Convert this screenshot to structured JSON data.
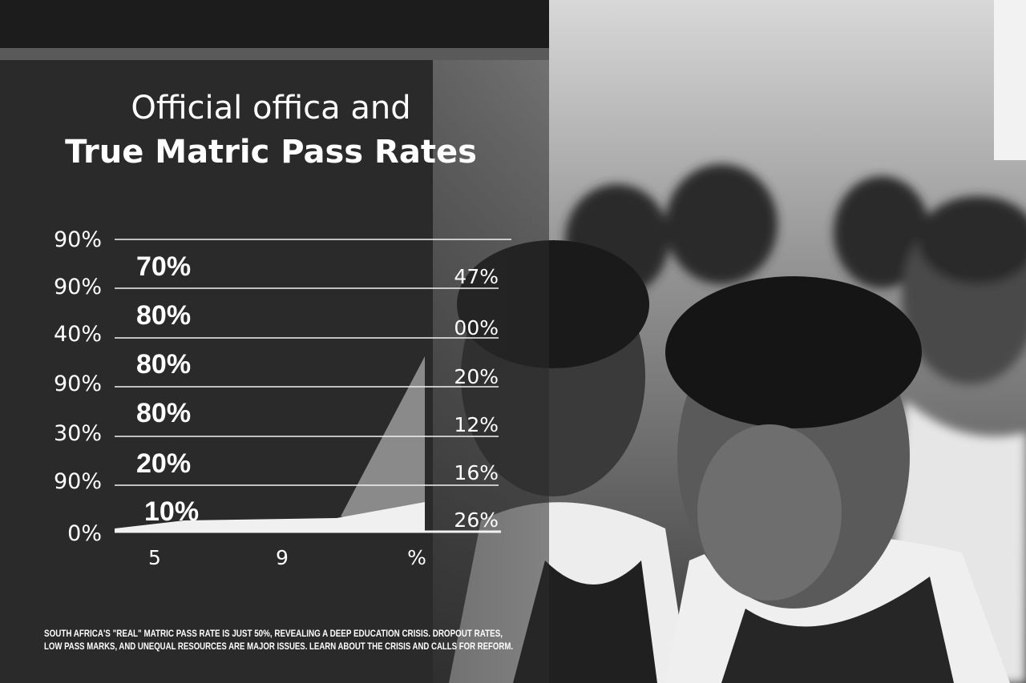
{
  "title": {
    "line1": "Official offica and",
    "line2": "True Matric Pass Rates"
  },
  "y_axis_labels": [
    "90%",
    "90%",
    "40%",
    "90%",
    "30%",
    "90%",
    "0%"
  ],
  "bar_labels": [
    "70%",
    "80%",
    "80%",
    "80%",
    "20%",
    "10%"
  ],
  "right_labels": [
    "47%",
    "00%",
    "20%",
    "12%",
    "16%",
    "26%"
  ],
  "x_axis_labels": [
    "5",
    "9",
    "%"
  ],
  "caption": [
    "SOUTH AFRICA'S \"REAL\" MATRIC PASS RATE IS JUST 50%, REVEALING A DEEP EDUCATION CRISIS. DROPOUT RATES,",
    "LOW PASS MARKS, AND UNEQUAL RESOURCES ARE MAJOR ISSUES. LEARN ABOUT THE CRISIS AND CALLS FOR REFORM."
  ]
}
